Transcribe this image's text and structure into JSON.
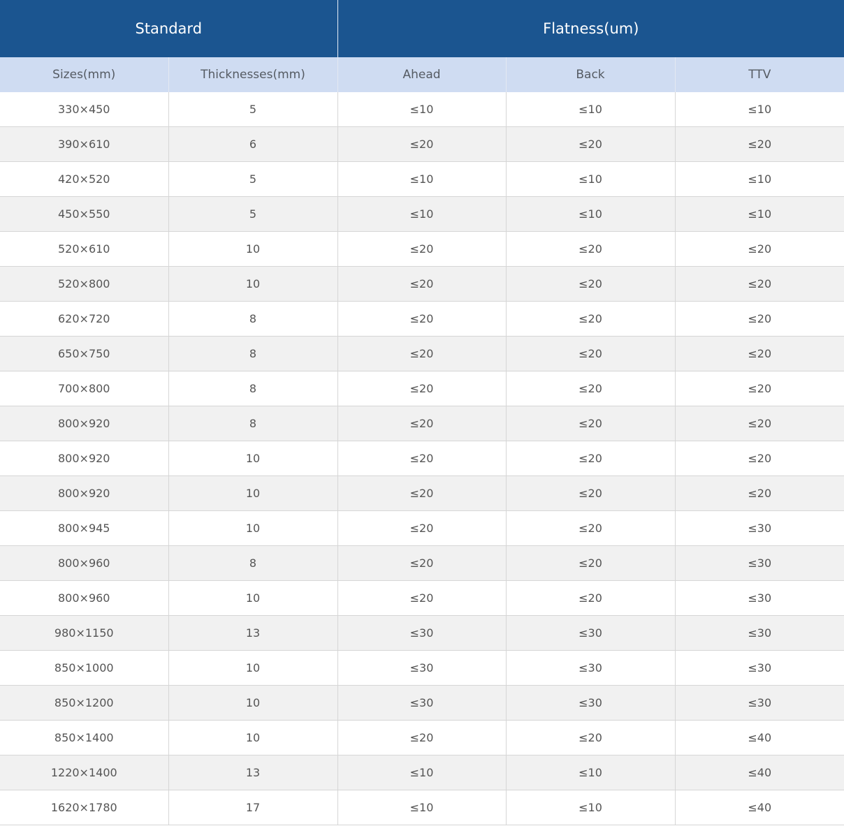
{
  "header": {
    "group_standard": "Standard",
    "group_flatness": "Flatness(um)",
    "col_sizes": "Sizes(mm)",
    "col_thicknesses": "Thicknesses(mm)",
    "col_ahead": "Ahead",
    "col_back": "Back",
    "col_ttv": "TTV"
  },
  "rows": [
    {
      "size": "330×450",
      "thickness": "5",
      "ahead": "≤10",
      "back": "≤10",
      "ttv": "≤10"
    },
    {
      "size": "390×610",
      "thickness": "6",
      "ahead": "≤20",
      "back": "≤20",
      "ttv": "≤20"
    },
    {
      "size": "420×520",
      "thickness": "5",
      "ahead": "≤10",
      "back": "≤10",
      "ttv": "≤10"
    },
    {
      "size": "450×550",
      "thickness": "5",
      "ahead": "≤10",
      "back": "≤10",
      "ttv": "≤10"
    },
    {
      "size": "520×610",
      "thickness": "10",
      "ahead": "≤20",
      "back": "≤20",
      "ttv": "≤20"
    },
    {
      "size": "520×800",
      "thickness": "10",
      "ahead": "≤20",
      "back": "≤20",
      "ttv": "≤20"
    },
    {
      "size": "620×720",
      "thickness": "8",
      "ahead": "≤20",
      "back": "≤20",
      "ttv": "≤20"
    },
    {
      "size": "650×750",
      "thickness": "8",
      "ahead": "≤20",
      "back": "≤20",
      "ttv": "≤20"
    },
    {
      "size": "700×800",
      "thickness": "8",
      "ahead": "≤20",
      "back": "≤20",
      "ttv": "≤20"
    },
    {
      "size": "800×920",
      "thickness": "8",
      "ahead": "≤20",
      "back": "≤20",
      "ttv": "≤20"
    },
    {
      "size": "800×920",
      "thickness": "10",
      "ahead": "≤20",
      "back": "≤20",
      "ttv": "≤20"
    },
    {
      "size": "800×920",
      "thickness": "10",
      "ahead": "≤20",
      "back": "≤20",
      "ttv": "≤20"
    },
    {
      "size": "800×945",
      "thickness": "10",
      "ahead": "≤20",
      "back": "≤20",
      "ttv": "≤30"
    },
    {
      "size": "800×960",
      "thickness": "8",
      "ahead": "≤20",
      "back": "≤20",
      "ttv": "≤30"
    },
    {
      "size": "800×960",
      "thickness": "10",
      "ahead": "≤20",
      "back": "≤20",
      "ttv": "≤30"
    },
    {
      "size": "980×1150",
      "thickness": "13",
      "ahead": "≤30",
      "back": "≤30",
      "ttv": "≤30"
    },
    {
      "size": "850×1000",
      "thickness": "10",
      "ahead": "≤30",
      "back": "≤30",
      "ttv": "≤30"
    },
    {
      "size": "850×1200",
      "thickness": "10",
      "ahead": "≤30",
      "back": "≤30",
      "ttv": "≤30"
    },
    {
      "size": "850×1400",
      "thickness": "10",
      "ahead": "≤20",
      "back": "≤20",
      "ttv": "≤40"
    },
    {
      "size": "1220×1400",
      "thickness": "13",
      "ahead": "≤10",
      "back": "≤10",
      "ttv": "≤40"
    },
    {
      "size": "1620×1780",
      "thickness": "17",
      "ahead": "≤10",
      "back": "≤10",
      "ttv": "≤40"
    }
  ]
}
